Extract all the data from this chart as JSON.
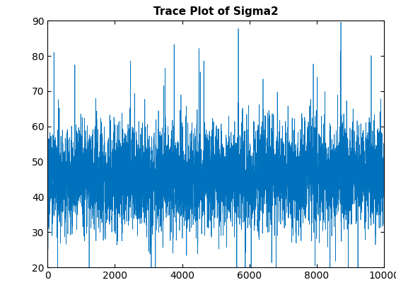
{
  "title": "Trace Plot of Sigma2",
  "xlim": [
    0,
    10000
  ],
  "ylim": [
    20,
    90
  ],
  "yticks": [
    20,
    30,
    40,
    50,
    60,
    70,
    80,
    90
  ],
  "xticks": [
    0,
    2000,
    4000,
    6000,
    8000,
    10000
  ],
  "line_color": "#0072BD",
  "line_width": 0.5,
  "n_points": 10000,
  "mean": 46.0,
  "std": 6.5,
  "ar_coeff": 0.6,
  "seed": 7,
  "figsize": [
    5.6,
    4.2
  ],
  "dpi": 100,
  "title_fontsize": 11,
  "title_fontweight": "bold",
  "bg_color": "#ffffff",
  "tick_fontsize": 10
}
